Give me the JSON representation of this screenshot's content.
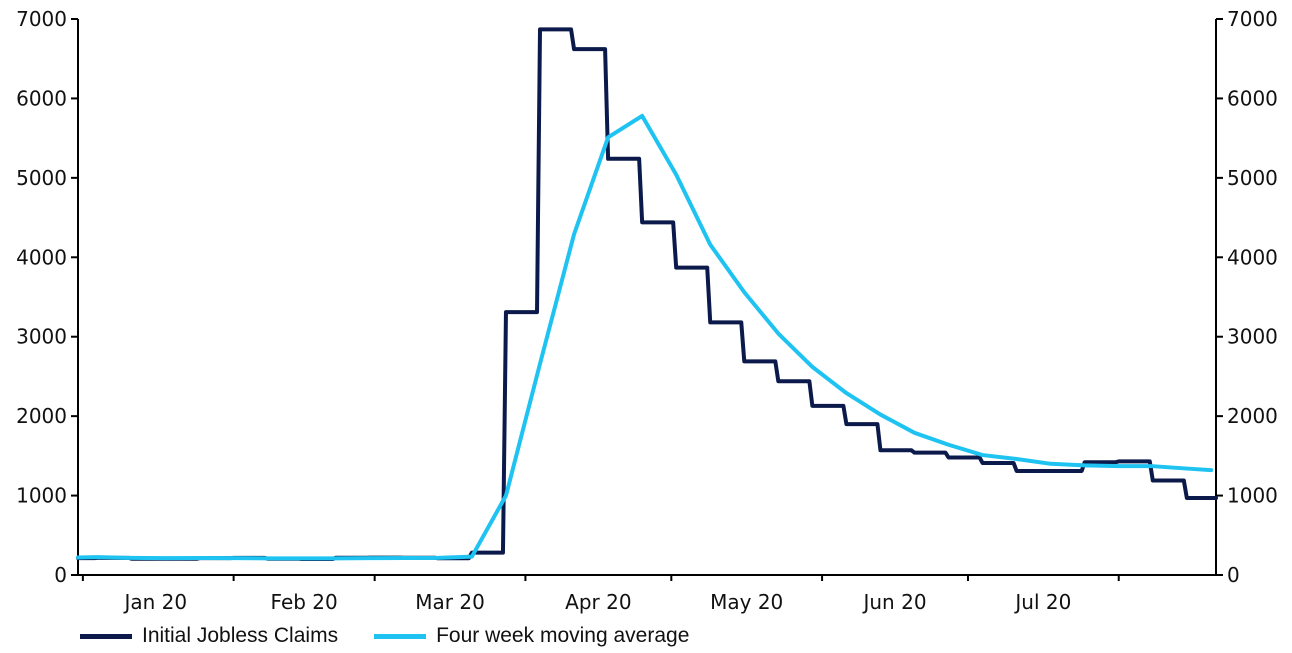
{
  "chart_data": {
    "type": "line",
    "title": "",
    "xlabel": "",
    "ylabel": "",
    "ylim": [
      0,
      7000
    ],
    "y_ticks": [
      0,
      1000,
      2000,
      3000,
      4000,
      5000,
      6000,
      7000
    ],
    "y_tick_labels": [
      "0",
      "1000",
      "2000",
      "3000",
      "4000",
      "5000",
      "6000",
      "7000"
    ],
    "right_axis": {
      "ylim": [
        0,
        7000
      ],
      "tick_labels": [
        "0",
        "1000",
        "2000",
        "3000",
        "4000",
        "5000",
        "6000",
        "7000"
      ]
    },
    "x_range_days": [
      0,
      234
    ],
    "x_month_boundaries_days": [
      1,
      32,
      61,
      92,
      122,
      153,
      183,
      214
    ],
    "x_tick_labels": [
      {
        "label": "Jan 20",
        "day": 16
      },
      {
        "label": "Feb 20",
        "day": 46.5
      },
      {
        "label": "Mar 20",
        "day": 76.5
      },
      {
        "label": "Apr 20",
        "day": 107
      },
      {
        "label": "May 20",
        "day": 137.5
      },
      {
        "label": "Jun 20",
        "day": 168
      },
      {
        "label": "Jul 20",
        "day": 198.5
      }
    ],
    "series": [
      {
        "name": "Initial Jobless Claims",
        "color": "#0b1a4a",
        "style": "step",
        "x": [
          0,
          4,
          11,
          18,
          25,
          32,
          39,
          46,
          53,
          60,
          67,
          74,
          81,
          88,
          95,
          102,
          109,
          116,
          123,
          130,
          137,
          144,
          151,
          158,
          165,
          172,
          179,
          186,
          193,
          200,
          207,
          214,
          221,
          228
        ],
        "values": [
          212,
          216,
          205,
          204,
          212,
          215,
          205,
          202,
          217,
          219,
          217,
          211,
          282,
          3310,
          6870,
          6620,
          5240,
          4440,
          3870,
          3180,
          2690,
          2440,
          2130,
          1900,
          1570,
          1540,
          1480,
          1410,
          1310,
          1310,
          1420,
          1430,
          1190,
          970
        ]
      },
      {
        "name": "Four week moving average",
        "color": "#1ec3f2",
        "style": "line",
        "x": [
          0,
          4,
          11,
          18,
          25,
          32,
          39,
          46,
          53,
          60,
          67,
          74,
          81,
          88,
          95,
          102,
          109,
          116,
          123,
          130,
          137,
          144,
          151,
          158,
          165,
          172,
          179,
          186,
          193,
          200,
          207,
          214,
          221,
          228,
          233
        ],
        "values": [
          220,
          225,
          215,
          213,
          214,
          212,
          210,
          209,
          210,
          212,
          214,
          216,
          232,
          1000,
          2660,
          4290,
          5510,
          5780,
          5040,
          4160,
          3560,
          3040,
          2620,
          2290,
          2020,
          1790,
          1640,
          1510,
          1460,
          1400,
          1380,
          1370,
          1370,
          1340,
          1320
        ]
      }
    ],
    "legend_position": "bottom-left"
  },
  "legend": {
    "items": [
      {
        "label": "Initial Jobless Claims",
        "color": "#0b1a4a"
      },
      {
        "label": "Four week moving average",
        "color": "#1ec3f2"
      }
    ]
  }
}
